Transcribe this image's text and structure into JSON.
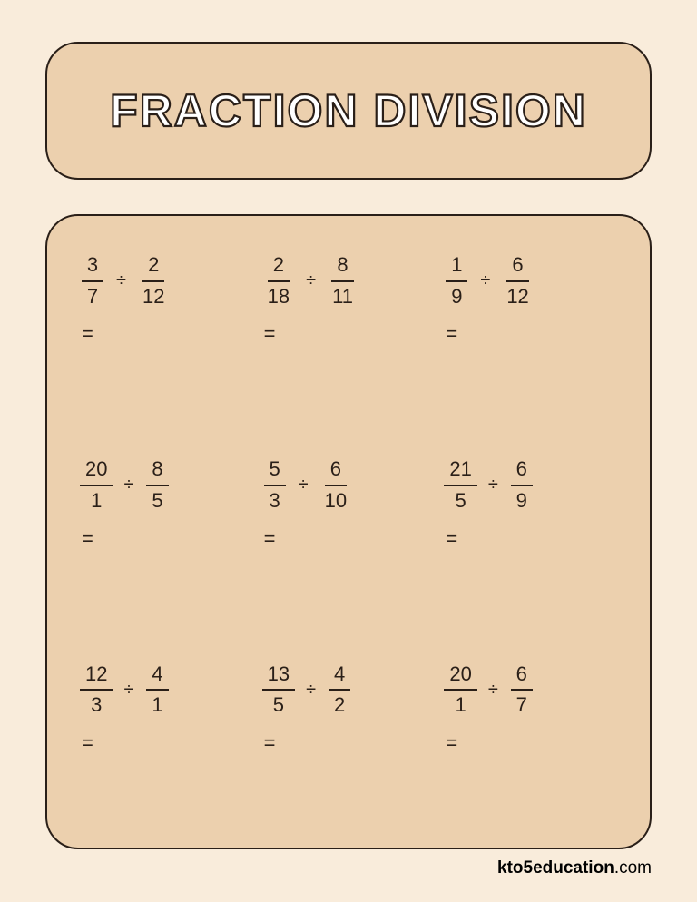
{
  "colors": {
    "page_bg": "#f9ecdb",
    "panel_bg": "#ecd0ae",
    "border": "#2a1f18",
    "text": "#2a1f18",
    "title_fill": "#ffffff"
  },
  "title": {
    "text": "FRACTION DIVISION",
    "fontsize": 50,
    "letter_spacing": 2
  },
  "layout": {
    "grid_rows": 3,
    "grid_cols": 3,
    "title_box_radius": 36,
    "problems_box_radius": 36,
    "border_width": 2
  },
  "symbols": {
    "divide": "÷",
    "equals": "="
  },
  "problems": [
    {
      "a_num": "3",
      "a_den": "7",
      "b_num": "2",
      "b_den": "12"
    },
    {
      "a_num": "2",
      "a_den": "18",
      "b_num": "8",
      "b_den": "11"
    },
    {
      "a_num": "1",
      "a_den": "9",
      "b_num": "6",
      "b_den": "12"
    },
    {
      "a_num": "20",
      "a_den": "1",
      "b_num": "8",
      "b_den": "5"
    },
    {
      "a_num": "5",
      "a_den": "3",
      "b_num": "6",
      "b_den": "10"
    },
    {
      "a_num": "21",
      "a_den": "5",
      "b_num": "6",
      "b_den": "9"
    },
    {
      "a_num": "12",
      "a_den": "3",
      "b_num": "4",
      "b_den": "1"
    },
    {
      "a_num": "13",
      "a_den": "5",
      "b_num": "4",
      "b_den": "2"
    },
    {
      "a_num": "20",
      "a_den": "1",
      "b_num": "6",
      "b_den": "7"
    }
  ],
  "footer": {
    "brand": "kto5education",
    "domain": ".com"
  }
}
